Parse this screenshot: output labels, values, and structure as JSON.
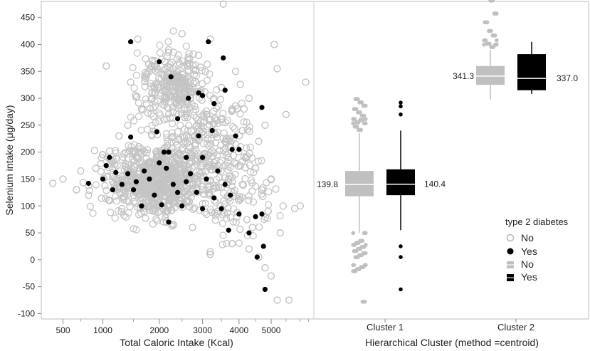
{
  "chart_data": [
    {
      "type": "scatter",
      "xlabel": "Total Caloric Intake (Kcal)",
      "ylabel": "Selenium intake (μg/day)",
      "xlim": [
        300,
        6500
      ],
      "ylim": [
        -110,
        480
      ],
      "xticks": [
        "500",
        "1000",
        "2000",
        "3000",
        "4000",
        "5000"
      ],
      "yticks": [
        "450",
        "400",
        "350",
        "300",
        "250",
        "200",
        "150",
        "100",
        "50",
        "0",
        "-50",
        "-100"
      ],
      "x_scale": "sqrt",
      "series": [
        {
          "name": "No",
          "color": "#c0c0c0",
          "marker": "open-circle",
          "points": [
            [
              400,
              142
            ],
            [
              500,
              150
            ],
            [
              650,
              130
            ],
            [
              700,
              165
            ],
            [
              800,
              120
            ],
            [
              900,
              170
            ],
            [
              1000,
              195
            ],
            [
              1050,
              360
            ],
            [
              1100,
              110
            ],
            [
              1200,
              150
            ],
            [
              1250,
              230
            ],
            [
              1300,
              95
            ],
            [
              1400,
              250
            ],
            [
              1450,
              330
            ],
            [
              1500,
              120
            ],
            [
              1600,
              210
            ],
            [
              1650,
              280
            ],
            [
              1700,
              90
            ],
            [
              1800,
              180
            ],
            [
              1850,
              300
            ],
            [
              1900,
              360
            ],
            [
              2000,
              140
            ],
            [
              2100,
              260
            ],
            [
              2150,
              70
            ],
            [
              2200,
              390
            ],
            [
              2300,
              200
            ],
            [
              2400,
              340
            ],
            [
              2450,
              110
            ],
            [
              2500,
              420
            ],
            [
              2600,
              160
            ],
            [
              2700,
              300
            ],
            [
              2750,
              60
            ],
            [
              2800,
              230
            ],
            [
              2900,
              380
            ],
            [
              3000,
              130
            ],
            [
              3100,
              270
            ],
            [
              3200,
              410
            ],
            [
              3300,
              180
            ],
            [
              3400,
              90
            ],
            [
              3500,
              320
            ],
            [
              3550,
              475
            ],
            [
              3600,
              220
            ],
            [
              3700,
              150
            ],
            [
              3800,
              280
            ],
            [
              3900,
              350
            ],
            [
              4000,
              110
            ],
            [
              4100,
              240
            ],
            [
              4200,
              190
            ],
            [
              4300,
              300
            ],
            [
              4400,
              60
            ],
            [
              4500,
              170
            ],
            [
              4600,
              220
            ],
            [
              4700,
              130
            ],
            [
              4800,
              250
            ],
            [
              4900,
              90
            ],
            [
              5000,
              150
            ],
            [
              5100,
              400
            ],
            [
              5200,
              355
            ],
            [
              5300,
              50
            ],
            [
              5400,
              100
            ],
            [
              5500,
              270
            ],
            [
              5600,
              -75
            ],
            [
              5800,
              95
            ],
            [
              6000,
              100
            ],
            [
              6200,
              330
            ],
            [
              4300,
              20
            ],
            [
              4600,
              5
            ],
            [
              4800,
              -15
            ],
            [
              5000,
              -30
            ],
            [
              5200,
              -75
            ],
            [
              3800,
              30
            ],
            [
              3200,
              10
            ]
          ]
        },
        {
          "name": "Yes",
          "color": "#000000",
          "marker": "filled-circle",
          "points": [
            [
              1450,
              405
            ],
            [
              3150,
              405
            ],
            [
              3550,
              375
            ],
            [
              2000,
              368
            ],
            [
              2250,
              340
            ],
            [
              3600,
              315
            ],
            [
              2900,
              310
            ],
            [
              3000,
              305
            ],
            [
              2650,
              300
            ],
            [
              3300,
              290
            ],
            [
              1950,
              238
            ],
            [
              3250,
              240
            ],
            [
              2400,
              262
            ],
            [
              2900,
              230
            ],
            [
              1450,
              228
            ],
            [
              4700,
              283
            ],
            [
              3900,
              230
            ],
            [
              3800,
              205
            ],
            [
              4000,
              205
            ],
            [
              1100,
              190
            ],
            [
              2100,
              200
            ],
            [
              2200,
              200
            ],
            [
              3000,
              190
            ],
            [
              1050,
              175
            ],
            [
              2000,
              180
            ],
            [
              2600,
              190
            ],
            [
              1200,
              162
            ],
            [
              1400,
              160
            ],
            [
              1700,
              165
            ],
            [
              2150,
              170
            ],
            [
              2700,
              160
            ],
            [
              3400,
              165
            ],
            [
              800,
              142
            ],
            [
              1000,
              150
            ],
            [
              1300,
              140
            ],
            [
              1550,
              145
            ],
            [
              1800,
              150
            ],
            [
              2300,
              140
            ],
            [
              2600,
              145
            ],
            [
              3100,
              150
            ],
            [
              3600,
              140
            ],
            [
              1150,
              130
            ],
            [
              1500,
              130
            ],
            [
              1900,
              120
            ],
            [
              2400,
              125
            ],
            [
              2850,
              125
            ],
            [
              3300,
              115
            ],
            [
              3750,
              120
            ],
            [
              1650,
              100
            ],
            [
              2050,
              102
            ],
            [
              2500,
              100
            ],
            [
              3000,
              95
            ],
            [
              3500,
              95
            ],
            [
              4000,
              85
            ],
            [
              2200,
              70
            ],
            [
              4500,
              80
            ],
            [
              4700,
              85
            ],
            [
              3700,
              55
            ],
            [
              4300,
              50
            ],
            [
              4750,
              25
            ],
            [
              4550,
              5
            ],
            [
              4800,
              -55
            ]
          ]
        }
      ]
    },
    {
      "type": "box",
      "xlabel": "Hierarchical Cluster (method =centroid)",
      "categories": [
        "Cluster 1",
        "Cluster 2"
      ],
      "ylim": [
        -110,
        480
      ],
      "series": [
        {
          "name": "No",
          "color": "#c0c0c0",
          "boxes": [
            {
              "category": "Cluster 1",
              "q1": 118,
              "median": 139.8,
              "q3": 165,
              "whisker_low": 50,
              "whisker_high": 235,
              "outliers_low": [
                45,
                40,
                35,
                30,
                25,
                20,
                15,
                10,
                5,
                0,
                -5,
                -10,
                -15,
                -20,
                -78
              ],
              "outliers_high": [
                240,
                245,
                250,
                255,
                260,
                265,
                270,
                275,
                280,
                285,
                290,
                295
              ]
            },
            {
              "category": "Cluster 2",
              "q1": 325,
              "median": 341.3,
              "q3": 360,
              "whisker_low": 298,
              "whisker_high": 390,
              "outliers_low": [],
              "outliers_high": [
                395,
                400,
                405,
                410,
                418,
                425,
                440,
                455,
                478
              ]
            }
          ]
        },
        {
          "name": "Yes",
          "color": "#000000",
          "boxes": [
            {
              "category": "Cluster 1",
              "q1": 120,
              "median": 140.4,
              "q3": 168,
              "whisker_low": 55,
              "whisker_high": 240,
              "outliers_low": [
                25,
                5,
                -55
              ],
              "outliers_high": [
                270,
                285,
                292
              ]
            },
            {
              "category": "Cluster 2",
              "q1": 315,
              "median": 337.0,
              "q3": 382,
              "whisker_low": 308,
              "whisker_high": 405,
              "outliers_low": [],
              "outliers_high": []
            }
          ]
        }
      ],
      "value_labels": [
        "139.8",
        "140.4",
        "341.3",
        "337.0"
      ]
    }
  ],
  "legend": {
    "title": "type 2 diabetes",
    "items": [
      {
        "label": "No",
        "marker": "open-circle",
        "color": "#c0c0c0"
      },
      {
        "label": "Yes",
        "marker": "filled-circle",
        "color": "#000000"
      },
      {
        "label": "No",
        "marker": "box",
        "color": "#c0c0c0"
      },
      {
        "label": "Yes",
        "marker": "box",
        "color": "#000000"
      }
    ]
  }
}
